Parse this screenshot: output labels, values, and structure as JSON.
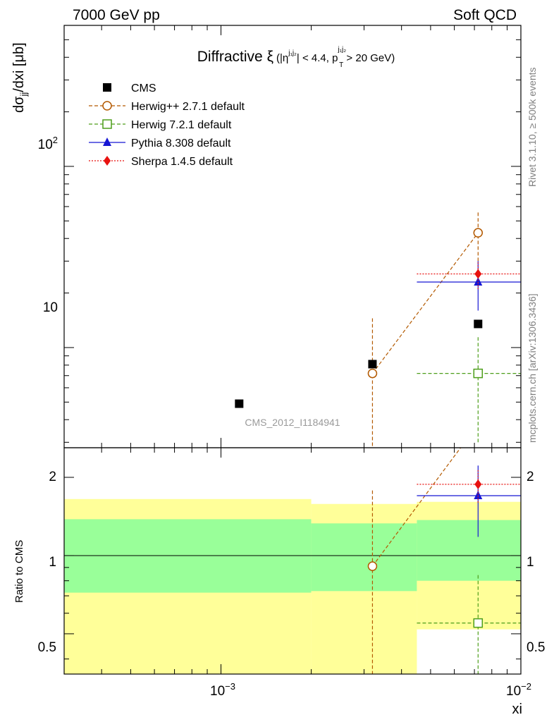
{
  "header": {
    "left": "7000 GeV pp",
    "right": "Soft QCD"
  },
  "side_text": {
    "rivet": "Rivet 3.1.10, ≥ 500k events",
    "mcplots": "mcplots.cern.ch [arXiv:1306.3436]"
  },
  "watermark": "CMS_2012_I1184941",
  "title": {
    "main": "Diffractive ξ",
    "cond_a": "(|η",
    "cond_sup_a": "j₁j₂",
    "cond_b": "| < 4.4, p",
    "cond_sub_b": "T",
    "cond_sup_b": "j₁j₂",
    "cond_c": " > 20 GeV)"
  },
  "axes": {
    "ylabel_main": "dσjj/dxi [μb]",
    "ylabel_ratio": "Ratio to CMS",
    "xlabel": "xi",
    "main_ticks": [
      "10",
      "10²"
    ],
    "ratio_ticks": [
      "0.5",
      "1",
      "2"
    ],
    "x_ticks": [
      "10⁻³",
      "10⁻²"
    ]
  },
  "chart_data": {
    "type": "scatter",
    "x_scale": "log",
    "y_scale": "log",
    "xlim": [
      0.0003,
      0.01
    ],
    "ylim": [
      2.8,
      600
    ],
    "ratio_ylim": [
      0.35,
      2.6
    ],
    "legend_position": "top-left",
    "bins": [
      [
        0.0003,
        0.002
      ],
      [
        0.002,
        0.0045
      ],
      [
        0.0045,
        0.01
      ]
    ],
    "bin_centers": [
      0.00115,
      0.0032,
      0.0072
    ],
    "series": [
      {
        "name": "CMS",
        "color": "#000000",
        "marker": "filled-square",
        "points": [
          {
            "x": 0.00115,
            "y": 4.9
          },
          {
            "x": 0.0032,
            "y": 8.1
          },
          {
            "x": 0.0072,
            "y": 13.5
          }
        ],
        "uncert_band_ratio": [
          {
            "x0": 0.0003,
            "x1": 0.002,
            "stat_lo": 0.72,
            "stat_hi": 1.38,
            "tot_lo": 0.3,
            "tot_hi": 1.65
          },
          {
            "x0": 0.002,
            "x1": 0.0045,
            "stat_lo": 0.73,
            "stat_hi": 1.33,
            "tot_lo": 0.3,
            "tot_hi": 1.58
          },
          {
            "x0": 0.0045,
            "x1": 0.01,
            "stat_lo": 0.8,
            "stat_hi": 1.37,
            "tot_lo": 0.52,
            "tot_hi": 1.61
          }
        ]
      },
      {
        "name": "Herwig++ 2.7.1 default",
        "color": "#b35900",
        "marker": "open-circle",
        "line": "dashed",
        "points": [
          {
            "x": 0.0032,
            "y": 7.2,
            "y_lo": 2.0,
            "y_hi": 14.5,
            "ratio": 0.91,
            "ratio_lo": 0.3,
            "ratio_hi": 1.8
          },
          {
            "x": 0.0072,
            "y": 43,
            "y_lo": 30,
            "y_hi": 57,
            "ratio": 3.2
          }
        ]
      },
      {
        "name": "Herwig 7.2.1 default",
        "color": "#4d9e1a",
        "marker": "open-square",
        "line": "dashed",
        "points": [
          {
            "x": 0.0072,
            "y": 7.2,
            "y_lo": 3.0,
            "y_hi": 11.5,
            "x0": 0.0045,
            "x1": 0.01,
            "ratio": 0.55,
            "ratio_lo": 0.3,
            "ratio_hi": 0.85
          }
        ]
      },
      {
        "name": "Pythia 8.308 default",
        "color": "#1616d4",
        "marker": "filled-triangle",
        "line": "solid",
        "points": [
          {
            "x": 0.0072,
            "y": 23,
            "y_lo": 16,
            "y_hi": 30,
            "x0": 0.0045,
            "x1": 0.01,
            "ratio": 1.7,
            "ratio_lo": 1.18,
            "ratio_hi": 2.22
          }
        ]
      },
      {
        "name": "Sherpa 1.4.5 default",
        "color": "#e8110f",
        "marker": "filled-diamond",
        "line": "dotted",
        "points": [
          {
            "x": 0.0072,
            "y": 25.5,
            "y_lo": 21,
            "y_hi": 30,
            "x0": 0.0045,
            "x1": 0.01,
            "ratio": 1.88,
            "ratio_lo": 1.6,
            "ratio_hi": 2.15
          }
        ]
      }
    ]
  }
}
